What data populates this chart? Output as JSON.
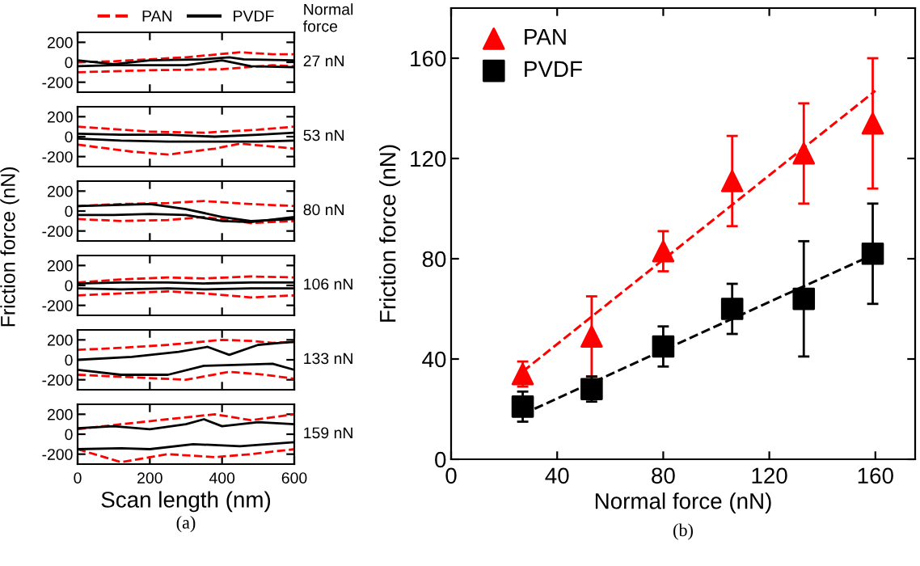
{
  "chart_data": [
    {
      "type": "line",
      "xlim": [
        0,
        600
      ],
      "ylim": [
        -300,
        300
      ],
      "xticks": [
        0,
        200,
        400,
        600
      ],
      "yticks": [
        -200,
        0,
        200
      ],
      "tick_labels": "y",
      "legend": "top",
      "annotations": [
        "Normal\nforce",
        "27 nN"
      ],
      "series": [
        {
          "name": "PAN",
          "color": "#ff0000",
          "line_style": "dashed",
          "x": [
            0,
            100,
            200,
            300,
            450,
            540,
            600
          ],
          "values": [
            0,
            10,
            30,
            50,
            100,
            80,
            80
          ]
        },
        {
          "color": "#ff0000",
          "line_style": "dashed",
          "x": [
            0,
            100,
            200,
            400,
            540,
            600
          ],
          "values": [
            -100,
            -90,
            -80,
            -70,
            -30,
            -40
          ]
        },
        {
          "name": "PVDF",
          "color": "#000000",
          "line_style": "solid",
          "x": [
            0,
            100,
            200,
            350,
            420,
            460,
            600
          ],
          "values": [
            20,
            -20,
            20,
            30,
            50,
            30,
            20
          ]
        },
        {
          "color": "#000000",
          "line_style": "solid",
          "x": [
            0,
            100,
            300,
            400,
            480,
            600
          ],
          "values": [
            -40,
            -30,
            -30,
            20,
            -40,
            -50
          ]
        }
      ]
    },
    {
      "type": "line",
      "xlim": [
        0,
        600
      ],
      "ylim": [
        -300,
        300
      ],
      "xticks": [
        0,
        200,
        400,
        600
      ],
      "yticks": [
        -200,
        0,
        200
      ],
      "tick_labels": "y",
      "annotations": [
        "53 nN"
      ],
      "series": [
        {
          "color": "#ff0000",
          "line_style": "dashed",
          "x": [
            0,
            200,
            350,
            500,
            600
          ],
          "values": [
            100,
            50,
            40,
            70,
            100
          ]
        },
        {
          "color": "#ff0000",
          "line_style": "dashed",
          "x": [
            0,
            150,
            250,
            380,
            450,
            600
          ],
          "values": [
            -80,
            -150,
            -180,
            -120,
            -70,
            -120
          ]
        },
        {
          "color": "#000000",
          "line_style": "solid",
          "x": [
            0,
            120,
            250,
            380,
            500,
            600
          ],
          "values": [
            30,
            20,
            20,
            0,
            20,
            40
          ]
        },
        {
          "color": "#000000",
          "line_style": "solid",
          "x": [
            0,
            120,
            250,
            380,
            500,
            600
          ],
          "values": [
            -20,
            -40,
            -50,
            -50,
            -50,
            -40
          ]
        }
      ]
    },
    {
      "type": "line",
      "xlim": [
        0,
        600
      ],
      "ylim": [
        -300,
        300
      ],
      "xticks": [
        0,
        200,
        400,
        600
      ],
      "yticks": [
        -200,
        0,
        200
      ],
      "tick_labels": "y",
      "ylabel": "Friction force (nN)",
      "annotations": [
        "80 nN"
      ],
      "series": [
        {
          "color": "#ff0000",
          "line_style": "dashed",
          "x": [
            0,
            120,
            250,
            350,
            480,
            600
          ],
          "values": [
            50,
            70,
            80,
            100,
            70,
            50
          ]
        },
        {
          "color": "#ff0000",
          "line_style": "dashed",
          "x": [
            0,
            120,
            250,
            350,
            480,
            600
          ],
          "values": [
            -80,
            -100,
            -90,
            -60,
            -120,
            -100
          ]
        },
        {
          "color": "#000000",
          "line_style": "solid",
          "x": [
            0,
            100,
            200,
            300,
            400,
            480,
            600
          ],
          "values": [
            50,
            60,
            70,
            20,
            -60,
            -100,
            -80
          ]
        },
        {
          "color": "#000000",
          "line_style": "solid",
          "x": [
            0,
            100,
            200,
            300,
            400,
            480,
            600
          ],
          "values": [
            -40,
            -40,
            -30,
            -40,
            -100,
            -110,
            -60
          ]
        }
      ]
    },
    {
      "type": "line",
      "xlim": [
        0,
        600
      ],
      "ylim": [
        -300,
        300
      ],
      "xticks": [
        0,
        200,
        400,
        600
      ],
      "yticks": [
        -200,
        0,
        200
      ],
      "tick_labels": "y",
      "annotations": [
        "106 nN"
      ],
      "series": [
        {
          "color": "#ff0000",
          "line_style": "dashed",
          "x": [
            0,
            120,
            250,
            350,
            480,
            600
          ],
          "values": [
            30,
            60,
            80,
            70,
            90,
            80
          ]
        },
        {
          "color": "#ff0000",
          "line_style": "dashed",
          "x": [
            0,
            120,
            250,
            350,
            480,
            600
          ],
          "values": [
            -100,
            -80,
            -60,
            -80,
            -120,
            -100
          ]
        },
        {
          "color": "#000000",
          "line_style": "solid",
          "x": [
            0,
            120,
            250,
            350,
            480,
            600
          ],
          "values": [
            20,
            30,
            30,
            20,
            30,
            30
          ]
        },
        {
          "color": "#000000",
          "line_style": "solid",
          "x": [
            0,
            120,
            250,
            350,
            480,
            600
          ],
          "values": [
            -30,
            -40,
            -30,
            -40,
            -30,
            -30
          ]
        }
      ]
    },
    {
      "type": "line",
      "xlim": [
        0,
        600
      ],
      "ylim": [
        -300,
        300
      ],
      "xticks": [
        0,
        200,
        400,
        600
      ],
      "yticks": [
        -200,
        0,
        200
      ],
      "tick_labels": "y",
      "annotations": [
        "133 nN"
      ],
      "series": [
        {
          "color": "#ff0000",
          "line_style": "dashed",
          "x": [
            0,
            120,
            250,
            400,
            480,
            540,
            600
          ],
          "values": [
            100,
            120,
            150,
            200,
            190,
            170,
            180
          ]
        },
        {
          "color": "#ff0000",
          "line_style": "dashed",
          "x": [
            0,
            120,
            300,
            420,
            520,
            600
          ],
          "values": [
            -150,
            -170,
            -200,
            -120,
            -150,
            -190
          ]
        },
        {
          "color": "#000000",
          "line_style": "solid",
          "x": [
            0,
            150,
            280,
            360,
            420,
            500,
            560,
            600
          ],
          "values": [
            0,
            30,
            80,
            130,
            50,
            150,
            170,
            180
          ]
        },
        {
          "color": "#000000",
          "line_style": "solid",
          "x": [
            0,
            120,
            250,
            350,
            450,
            540,
            600
          ],
          "values": [
            -100,
            -150,
            -150,
            -60,
            -50,
            -40,
            -100
          ]
        }
      ]
    },
    {
      "type": "line",
      "xlim": [
        0,
        600
      ],
      "ylim": [
        -300,
        300
      ],
      "xticks": [
        0,
        200,
        400,
        600
      ],
      "yticks": [
        -200,
        0,
        200
      ],
      "xlabel": "Scan length (nm)",
      "title": "(a)",
      "annotations": [
        "159 nN"
      ],
      "series": [
        {
          "color": "#ff0000",
          "line_style": "dashed",
          "x": [
            0,
            120,
            250,
            380,
            480,
            600
          ],
          "values": [
            50,
            100,
            150,
            200,
            140,
            200
          ]
        },
        {
          "color": "#ff0000",
          "line_style": "dashed",
          "x": [
            0,
            120,
            250,
            380,
            480,
            600
          ],
          "values": [
            -150,
            -280,
            -200,
            -230,
            -200,
            -150
          ]
        },
        {
          "color": "#000000",
          "line_style": "solid",
          "x": [
            0,
            100,
            200,
            300,
            350,
            400,
            500,
            600
          ],
          "values": [
            60,
            80,
            50,
            100,
            150,
            80,
            120,
            100
          ]
        },
        {
          "color": "#000000",
          "line_style": "solid",
          "x": [
            0,
            120,
            200,
            320,
            450,
            600
          ],
          "values": [
            -150,
            -140,
            -150,
            -100,
            -120,
            -80
          ]
        }
      ]
    },
    {
      "type": "scatter",
      "xlabel": "Normal force (nN)",
      "ylabel": "Friction force (nN)",
      "title": "(b)",
      "xlim": [
        0,
        175
      ],
      "ylim": [
        0,
        180
      ],
      "xticks": [
        0,
        40,
        80,
        120,
        160
      ],
      "yticks": [
        0,
        40,
        80,
        120,
        160
      ],
      "legend": "top left",
      "series": [
        {
          "name": "PAN",
          "color": "#ff0000",
          "marker": "triangle",
          "x": [
            27,
            53,
            80,
            106,
            133,
            159
          ],
          "values": [
            34,
            49,
            83,
            111,
            122,
            134
          ],
          "errors": [
            5,
            16,
            8,
            18,
            20,
            26
          ]
        },
        {
          "name": "PVDF",
          "color": "#000000",
          "marker": "square",
          "x": [
            27,
            53,
            80,
            106,
            133,
            159
          ],
          "values": [
            21,
            28,
            45,
            60,
            64,
            82
          ],
          "errors": [
            6,
            5,
            8,
            10,
            23,
            20
          ]
        },
        {
          "type": "line",
          "color": "#ff0000",
          "line_style": "dashed",
          "x": [
            27,
            160
          ],
          "values": [
            35,
            147
          ]
        },
        {
          "type": "line",
          "color": "#000000",
          "line_style": "dashed",
          "x": [
            27,
            160
          ],
          "values": [
            18,
            82
          ]
        }
      ]
    }
  ]
}
